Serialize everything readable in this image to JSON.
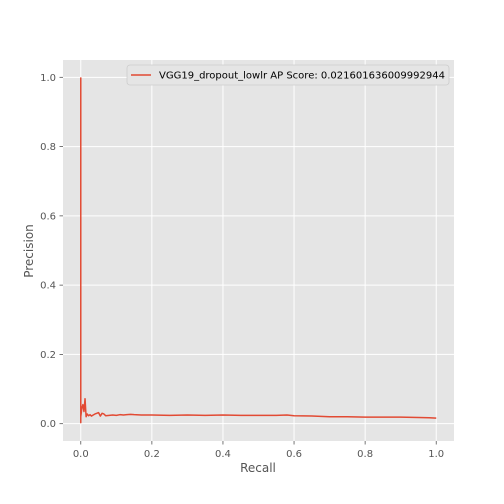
{
  "chart_data": {
    "type": "line",
    "xlabel": "Recall",
    "ylabel": "Precision",
    "xlim": [
      -0.05,
      1.05
    ],
    "ylim": [
      -0.05,
      1.05
    ],
    "xticks": [
      0.0,
      0.2,
      0.4,
      0.6,
      0.8,
      1.0
    ],
    "yticks": [
      0.0,
      0.2,
      0.4,
      0.6,
      0.8,
      1.0
    ],
    "xtick_labels": [
      "0.0",
      "0.2",
      "0.4",
      "0.6",
      "0.8",
      "1.0"
    ],
    "ytick_labels": [
      "0.0",
      "0.2",
      "0.4",
      "0.6",
      "0.8",
      "1.0"
    ],
    "grid": true,
    "legend_position": "top-right",
    "colors": {
      "background": "#e5e5e5",
      "grid": "#ffffff",
      "series": "#e24a33",
      "text": "#555555"
    },
    "series": [
      {
        "name": "VGG19_dropout_lowlr AP Score: 0.021601636009992944",
        "x": [
          0.0,
          0.0,
          0.0,
          0.003,
          0.006,
          0.009,
          0.012,
          0.015,
          0.018,
          0.022,
          0.026,
          0.03,
          0.035,
          0.04,
          0.045,
          0.05,
          0.055,
          0.06,
          0.065,
          0.07,
          0.08,
          0.09,
          0.1,
          0.11,
          0.12,
          0.13,
          0.14,
          0.15,
          0.17,
          0.2,
          0.25,
          0.3,
          0.35,
          0.4,
          0.45,
          0.5,
          0.55,
          0.58,
          0.6,
          0.65,
          0.7,
          0.75,
          0.8,
          0.85,
          0.9,
          0.95,
          0.98,
          1.0
        ],
        "y": [
          1.0,
          0.003,
          0.02,
          0.045,
          0.055,
          0.035,
          0.072,
          0.02,
          0.028,
          0.023,
          0.026,
          0.022,
          0.025,
          0.028,
          0.03,
          0.032,
          0.022,
          0.03,
          0.028,
          0.023,
          0.024,
          0.025,
          0.024,
          0.026,
          0.025,
          0.026,
          0.027,
          0.026,
          0.025,
          0.025,
          0.024,
          0.025,
          0.024,
          0.025,
          0.024,
          0.024,
          0.024,
          0.025,
          0.023,
          0.022,
          0.02,
          0.02,
          0.019,
          0.019,
          0.019,
          0.018,
          0.017,
          0.016
        ]
      }
    ]
  }
}
